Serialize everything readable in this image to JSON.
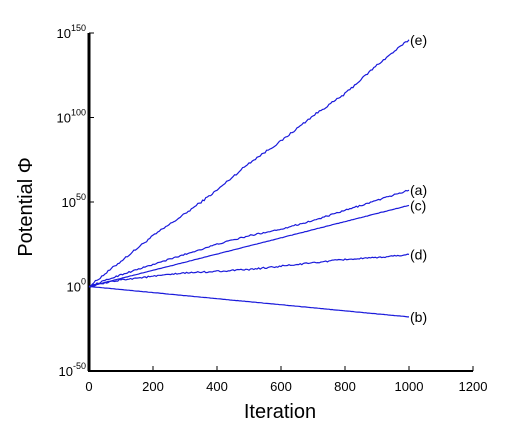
{
  "chart_data": {
    "type": "line",
    "title": "",
    "xlabel": "Iteration",
    "ylabel": "Potential Φ",
    "xlim": [
      0,
      1200
    ],
    "ylim_log10": [
      -50,
      150
    ],
    "y_scale": "log",
    "grid": false,
    "line_color": "#1a1adb",
    "x_ticks": [
      {
        "value": 0,
        "label": "0"
      },
      {
        "value": 200,
        "label": "200"
      },
      {
        "value": 400,
        "label": "400"
      },
      {
        "value": 600,
        "label": "600"
      },
      {
        "value": 800,
        "label": "800"
      },
      {
        "value": 1000,
        "label": "1000"
      },
      {
        "value": 1200,
        "label": "1200"
      }
    ],
    "y_ticks": [
      {
        "value": -50,
        "base": "10",
        "exponent": "-50"
      },
      {
        "value": 0,
        "base": "10",
        "exponent": "0"
      },
      {
        "value": 50,
        "base": "10",
        "exponent": "50"
      },
      {
        "value": 100,
        "base": "10",
        "exponent": "100"
      },
      {
        "value": 150,
        "base": "10",
        "exponent": "150"
      }
    ],
    "series": [
      {
        "name": "(e)",
        "noise": 1.2,
        "x": [
          0,
          100,
          200,
          300,
          400,
          500,
          600,
          700,
          800,
          900,
          1000
        ],
        "log10_values": [
          0,
          15,
          30,
          43,
          57,
          73,
          86,
          101,
          114,
          131,
          146
        ]
      },
      {
        "name": "(a)",
        "noise": 0.8,
        "x": [
          0,
          100,
          200,
          300,
          400,
          500,
          600,
          700,
          800,
          900,
          1000
        ],
        "log10_values": [
          0,
          7,
          13,
          19,
          25,
          30,
          34,
          39,
          45,
          51,
          57
        ]
      },
      {
        "name": "(c)",
        "noise": 0.2,
        "x": [
          0,
          100,
          200,
          300,
          400,
          500,
          600,
          700,
          800,
          900,
          1000
        ],
        "log10_values": [
          0,
          4.8,
          9.6,
          14.4,
          19.2,
          24,
          28.8,
          33.6,
          38.4,
          43.2,
          48
        ]
      },
      {
        "name": "(d)",
        "noise": 0.9,
        "x": [
          0,
          100,
          200,
          300,
          400,
          500,
          600,
          700,
          800,
          900,
          1000
        ],
        "log10_values": [
          0,
          4,
          6,
          8,
          9,
          10,
          12,
          14,
          16,
          17,
          19
        ]
      },
      {
        "name": "(b)",
        "noise": 0.15,
        "x": [
          0,
          100,
          200,
          300,
          400,
          500,
          600,
          700,
          800,
          900,
          1000
        ],
        "log10_values": [
          0,
          -1.8,
          -3.6,
          -5.4,
          -7.2,
          -9,
          -10.8,
          -12.6,
          -14.4,
          -16.2,
          -18
        ]
      }
    ]
  }
}
